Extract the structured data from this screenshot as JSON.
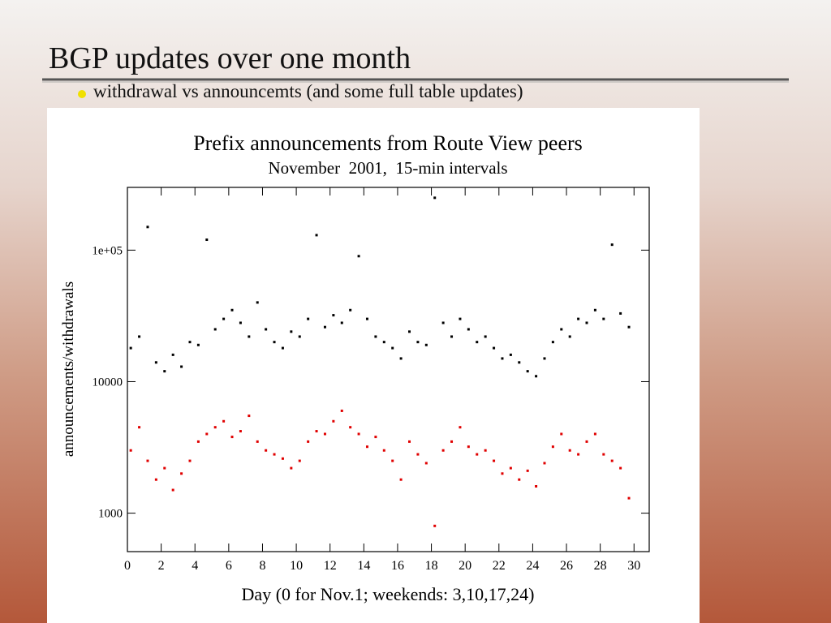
{
  "slide": {
    "title": "BGP updates over one month",
    "bullet": "withdrawal vs announcemts (and some full table updates)"
  },
  "chart_data": {
    "type": "scatter",
    "title": "Prefix announcements from Route View peers",
    "subtitle": "November  2001,  15-min intervals",
    "x_label": "Day (0 for Nov.1; weekends: 3,10,17,24)",
    "y_label": "announcements/withdrawals",
    "log_y": true,
    "xlim": [
      0,
      30.9
    ],
    "ylim": [
      510,
      300000
    ],
    "xticks": [
      0,
      2,
      4,
      6,
      8,
      10,
      12,
      14,
      16,
      18,
      20,
      22,
      24,
      26,
      28,
      30
    ],
    "yticks": [
      1000,
      10000,
      {
        "value": 100000,
        "label": "1e+05"
      }
    ],
    "x": [
      0.2,
      0.7,
      1.2,
      1.7,
      2.2,
      2.7,
      3.2,
      3.7,
      4.2,
      4.7,
      5.2,
      5.7,
      6.2,
      6.7,
      7.2,
      7.7,
      8.2,
      8.7,
      9.2,
      9.7,
      10.2,
      10.7,
      11.2,
      11.7,
      12.2,
      12.7,
      13.2,
      13.7,
      14.2,
      14.7,
      15.2,
      15.7,
      16.2,
      16.7,
      17.2,
      17.7,
      18.2,
      18.7,
      19.2,
      19.7,
      20.2,
      20.7,
      21.2,
      21.7,
      22.2,
      22.7,
      23.2,
      23.7,
      24.2,
      24.7,
      25.2,
      25.7,
      26.2,
      26.7,
      27.2,
      27.7,
      28.2,
      28.7,
      29.2,
      29.7
    ],
    "series": [
      {
        "color": "#000000",
        "values": [
          18000,
          22000,
          150000,
          14000,
          12000,
          16000,
          13000,
          20000,
          19000,
          120000,
          25000,
          30000,
          35000,
          28000,
          22000,
          40000,
          25000,
          20000,
          18000,
          24000,
          22000,
          30000,
          130000,
          26000,
          32000,
          28000,
          35000,
          90000,
          30000,
          22000,
          20000,
          18000,
          15000,
          24000,
          20000,
          19000,
          250000,
          28000,
          22000,
          30000,
          25000,
          20000,
          22000,
          18000,
          15000,
          16000,
          14000,
          12000,
          11000,
          15000,
          20000,
          25000,
          22000,
          30000,
          28000,
          35000,
          30000,
          110000,
          33000,
          26000
        ]
      },
      {
        "color": "#e00000",
        "values": [
          3000,
          4500,
          2500,
          1800,
          2200,
          1500,
          2000,
          2500,
          3500,
          4000,
          4500,
          5000,
          3800,
          4200,
          5500,
          3500,
          3000,
          2800,
          2600,
          2200,
          2500,
          3500,
          4200,
          4000,
          5000,
          6000,
          4500,
          4000,
          3200,
          3800,
          3000,
          2500,
          1800,
          3500,
          2800,
          2400,
          800,
          3000,
          3500,
          4500,
          3200,
          2800,
          3000,
          2500,
          2000,
          2200,
          1800,
          2100,
          1600,
          2400,
          3200,
          4000,
          3000,
          2800,
          3500,
          4000,
          2800,
          2500,
          2200,
          1300
        ]
      }
    ]
  }
}
